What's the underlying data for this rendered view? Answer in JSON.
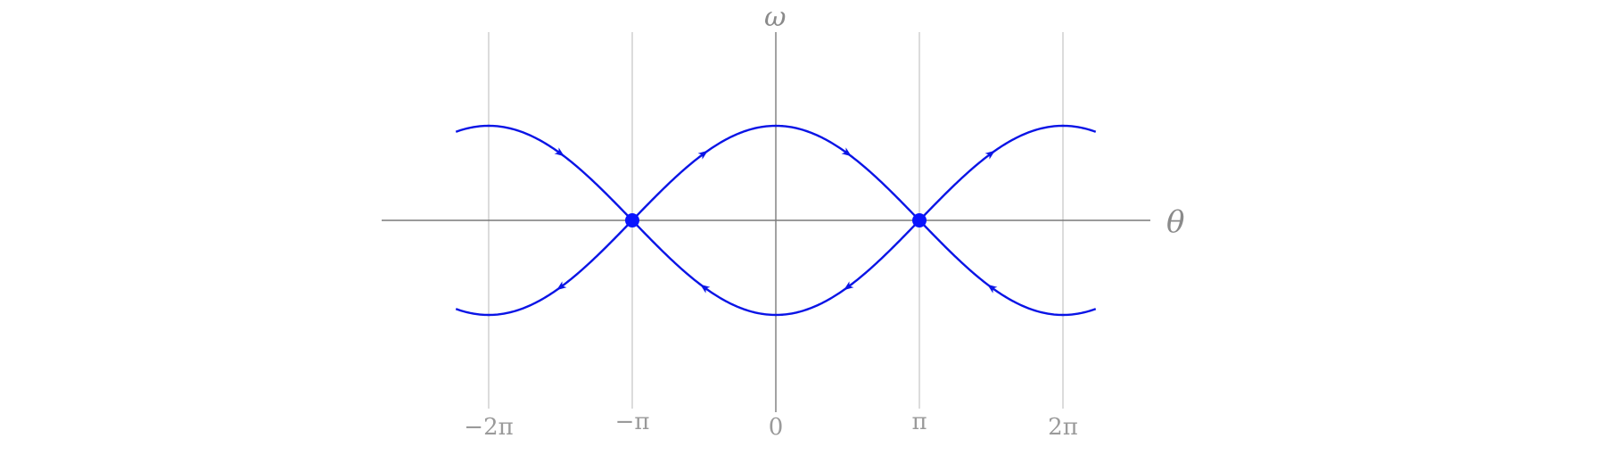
{
  "diagram": {
    "x_axis_label": "θ",
    "y_axis_label": "ω",
    "x_ticks": [
      {
        "value": -6.283185,
        "label": "−2π"
      },
      {
        "value": -3.141593,
        "label": "−π"
      },
      {
        "value": 0,
        "label": "0"
      },
      {
        "value": 3.141593,
        "label": "π"
      },
      {
        "value": 6.283185,
        "label": "2π"
      }
    ],
    "separatrix_amplitude": 2,
    "x_range": [
      -7,
      7
    ],
    "fixed_points": [
      {
        "theta": -3.141593,
        "omega": 0
      },
      {
        "theta": 3.141593,
        "omega": 0
      }
    ],
    "colors": {
      "curve": "#0a14e6",
      "fixed_point": "#0a14ff",
      "axis": "#7a7a7a",
      "grid": "#c9c9c9",
      "label": "#9a9a9a"
    }
  }
}
